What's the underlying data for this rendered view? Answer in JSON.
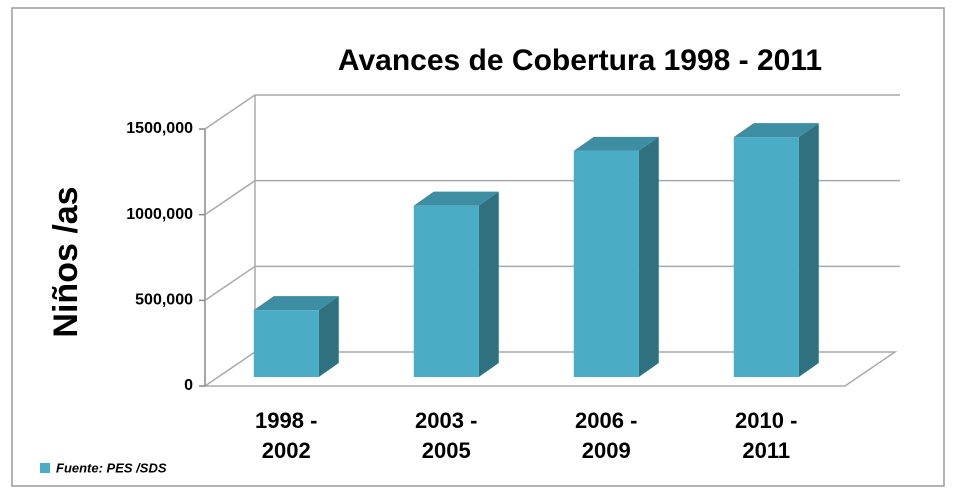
{
  "chart_data": {
    "type": "bar3d",
    "title": "Avances de Cobertura 1998 - 2011",
    "y_label": "Niños /as",
    "categories": [
      "1998 -\n2002",
      "2003 -\n2005",
      "2006 -\n2009",
      "2010 -\n2011"
    ],
    "values": [
      390000,
      1000000,
      1320000,
      1400000
    ],
    "color": "#4bacc6",
    "ylim": [
      0,
      1500000
    ],
    "yticks": [
      0,
      {
        "value": 500000,
        "label": "500,000"
      },
      {
        "value": 1000000,
        "label": "1000,000"
      },
      {
        "value": 1500000,
        "label": "1500,000"
      }
    ],
    "grid": true,
    "legend": {
      "position": "bottom-left",
      "text": "Fuente: PES /SDS"
    }
  }
}
